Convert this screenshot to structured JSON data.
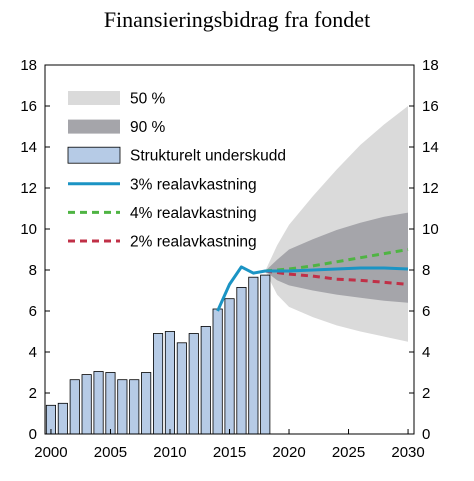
{
  "chart_data": {
    "type": "bar",
    "title": "Finansieringsbidrag fra fondet",
    "xlabel": "",
    "ylabel": "",
    "xlim": [
      1999.5,
      2030.5
    ],
    "ylim": [
      0,
      18
    ],
    "y_ticks": [
      0,
      2,
      4,
      6,
      8,
      10,
      12,
      14,
      16,
      18
    ],
    "x_ticks": [
      2000,
      2005,
      2010,
      2015,
      2020,
      2025,
      2030
    ],
    "grid": false,
    "legend_position": "top-left",
    "colors": {
      "band_50": "#dadada",
      "band_90": "#a5a5aa",
      "bar_fill": "#b6cbe6",
      "bar_stroke": "#000000",
      "line_3pct": "#1b94c4",
      "line_4pct": "#4fb443",
      "line_2pct": "#c03047"
    },
    "legend": [
      {
        "key": "band_50",
        "label": "50 %",
        "swatch": "area"
      },
      {
        "key": "band_90",
        "label": "90 %",
        "swatch": "area"
      },
      {
        "key": "bars",
        "label": "Strukturelt underskudd",
        "swatch": "bar"
      },
      {
        "key": "line_3pct",
        "label": "3% realavkastning",
        "swatch": "solid"
      },
      {
        "key": "line_4pct",
        "label": "4% realavkastning",
        "swatch": "dashed"
      },
      {
        "key": "line_2pct",
        "label": "2% realavkastning",
        "swatch": "dashed"
      }
    ],
    "bars": {
      "name": "Strukturelt underskudd",
      "x": [
        2000,
        2001,
        2002,
        2003,
        2004,
        2005,
        2006,
        2007,
        2008,
        2009,
        2010,
        2011,
        2012,
        2013,
        2014,
        2015,
        2016,
        2017,
        2018
      ],
      "values": [
        1.4,
        1.5,
        2.65,
        2.9,
        3.05,
        3.0,
        2.65,
        2.65,
        3.0,
        4.9,
        5.0,
        4.45,
        4.9,
        5.25,
        6.1,
        6.6,
        7.15,
        7.65,
        7.75
      ]
    },
    "series": [
      {
        "name": "3% realavkastning",
        "style": "solid",
        "x": [
          2014,
          2015,
          2016,
          2017,
          2018,
          2019,
          2020,
          2022,
          2024,
          2026,
          2028,
          2030
        ],
        "values": [
          6.0,
          7.3,
          8.15,
          7.85,
          7.95,
          7.95,
          7.95,
          8.0,
          8.05,
          8.1,
          8.1,
          8.05
        ]
      },
      {
        "name": "4% realavkastning",
        "style": "dashed",
        "x": [
          2018,
          2020,
          2022,
          2024,
          2026,
          2028,
          2030
        ],
        "values": [
          7.95,
          8.05,
          8.2,
          8.4,
          8.6,
          8.8,
          9.0
        ]
      },
      {
        "name": "2% realavkastning",
        "style": "dashed",
        "x": [
          2018,
          2020,
          2022,
          2024,
          2026,
          2028,
          2030
        ],
        "values": [
          7.95,
          7.8,
          7.7,
          7.55,
          7.5,
          7.4,
          7.3
        ]
      }
    ],
    "bands": [
      {
        "name": "50 %",
        "x": [
          2018,
          2019,
          2020,
          2022,
          2024,
          2026,
          2028,
          2030
        ],
        "upper": [
          7.95,
          9.2,
          10.2,
          11.6,
          12.9,
          14.1,
          15.1,
          16.0
        ],
        "lower": [
          7.95,
          6.8,
          6.2,
          5.7,
          5.3,
          5.0,
          4.75,
          4.5
        ]
      },
      {
        "name": "90 %",
        "x": [
          2018,
          2019,
          2020,
          2022,
          2024,
          2026,
          2028,
          2030
        ],
        "upper": [
          7.95,
          8.5,
          9.0,
          9.5,
          9.95,
          10.3,
          10.6,
          10.8
        ],
        "lower": [
          7.95,
          7.5,
          7.25,
          7.0,
          6.8,
          6.65,
          6.5,
          6.4
        ]
      }
    ]
  }
}
